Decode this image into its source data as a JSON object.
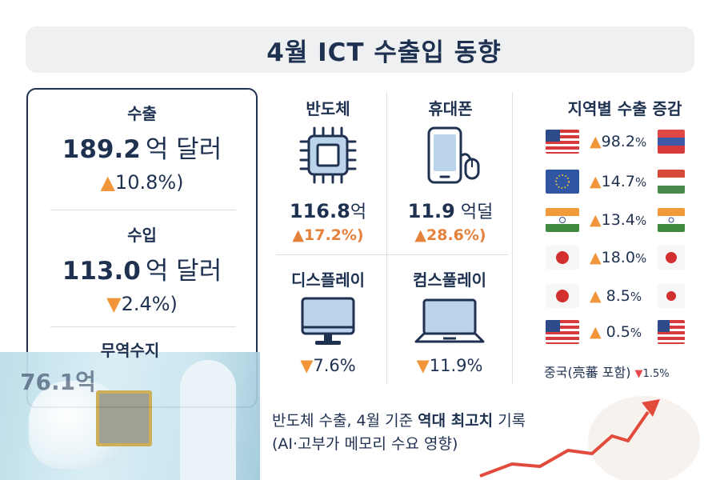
{
  "title": "4월 ICT 수출입 동향",
  "summary": {
    "export": {
      "label": "수출",
      "value": "189.2",
      "unit": "억 달러",
      "arrow": "▲",
      "change": "10.8%)"
    },
    "import": {
      "label": "수입",
      "value": "113.0",
      "unit": "억 달러",
      "arrow": "▼",
      "change": "2.4%)"
    },
    "trade": {
      "label": "무역수지",
      "value": "76.1억"
    }
  },
  "products": [
    {
      "name": "반도체",
      "icon": "chip-icon",
      "value": "116.8",
      "unit": "억",
      "arrow": "▲",
      "change": "17.2%)"
    },
    {
      "name": "휴대폰",
      "icon": "phone-icon",
      "value": "11.9",
      "unit": " 억덜",
      "arrow": "▲",
      "change": "28.6%)"
    },
    {
      "name": "디스플레이",
      "icon": "monitor-icon",
      "arrow": "▼",
      "change": "7.6%"
    },
    {
      "name": "컴스풀레이",
      "icon": "laptop-icon",
      "arrow": "▼",
      "change": "11.9%"
    }
  ],
  "regions": {
    "title": "지역별 수출 증감",
    "rows": [
      {
        "value": "98.2",
        "pct": "%",
        "flag_left": "us-flag",
        "flag_right": "ru-flag"
      },
      {
        "value": "14.7",
        "pct": "%",
        "flag_left": "eu-flag",
        "flag_right": "hu-flag"
      },
      {
        "value": "13.4",
        "pct": "%",
        "flag_left": "in-flag",
        "flag_right": "in-flag"
      },
      {
        "value": "18.0",
        "pct": "%",
        "flag_left": "jp-flag",
        "flag_right": "jp-flag"
      },
      {
        "value": "8.5",
        "pct": "%",
        "flag_left": "jp-flag",
        "flag_right": "jp-flag"
      },
      {
        "value": "0.5",
        "pct": "%",
        "flag_left": "us-flag",
        "flag_right": "us-flag"
      }
    ],
    "china": {
      "label": "중국(亮蕃 포함)",
      "arrow": "▼",
      "value": "1.5%"
    }
  },
  "note": {
    "line1_a": "반도체 수출, 4월 기준 ",
    "line1_b": "역대 최고치",
    "line1_c": " 기록",
    "line2": "(AI·고부가 메모리 수요 영향)"
  },
  "colors": {
    "navy": "#1f3150",
    "accent_orange": "#f0953a",
    "accent_red": "#e5484d"
  }
}
